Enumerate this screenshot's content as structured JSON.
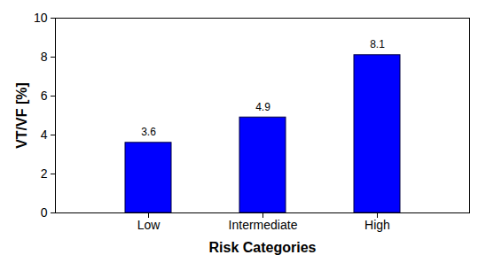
{
  "chart_data": {
    "type": "bar",
    "categories": [
      "Low",
      "Intermediate",
      "High"
    ],
    "values": [
      3.6,
      4.9,
      8.1
    ],
    "color": "#0000ff",
    "x_label": "Risk Categories",
    "y_label": "VT/VF [%]",
    "ylim": [
      0,
      10
    ],
    "yticks": [
      0,
      2,
      4,
      6,
      8,
      10
    ],
    "grid": false,
    "data_labels": true
  }
}
